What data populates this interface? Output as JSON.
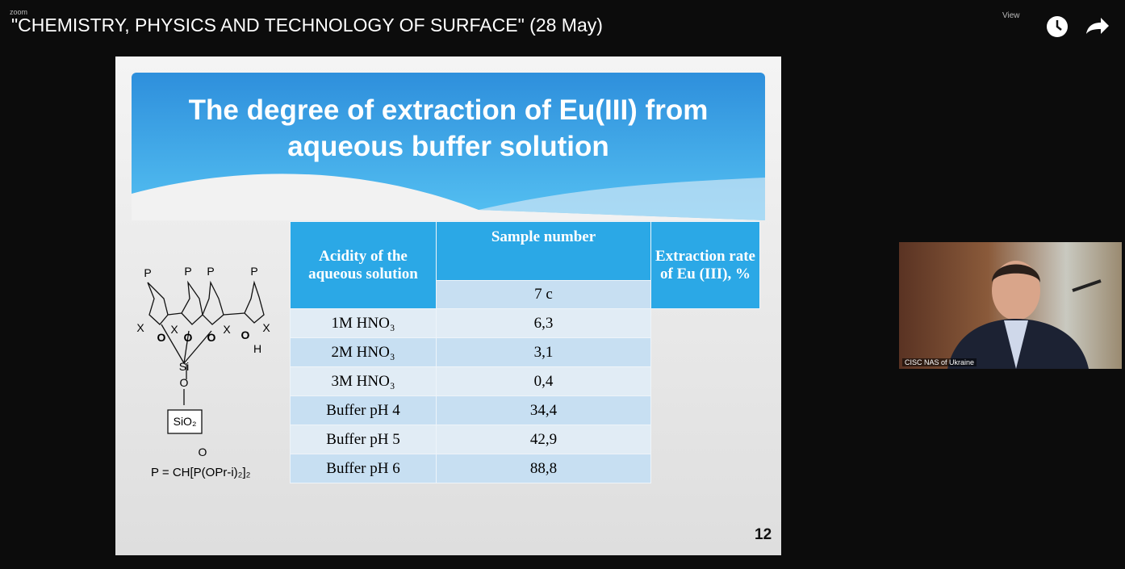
{
  "zoom_bar": {
    "app": "zoom",
    "view": "View"
  },
  "video_title": "\"CHEMISTRY, PHYSICS AND TECHNOLOGY OF SURFACE\" (28 May)",
  "slide": {
    "title": "The degree of extraction of Eu(III) from aqueous buffer solution",
    "table": {
      "header_acidity": "Acidity of the aqueous solution",
      "header_sample": "Sample number",
      "header_sample_id": "7 c",
      "header_rate": "Extraction rate of Eu (III), %",
      "rows": [
        [
          "1M HNO₃",
          "6,3"
        ],
        [
          "2M HNO₃",
          "3,1"
        ],
        [
          "3M HNO₃",
          "0,4"
        ],
        [
          "Buffer pH 4",
          "34,4"
        ],
        [
          "Buffer pH 5",
          "42,9"
        ],
        [
          "Buffer pH 6",
          "88,8"
        ]
      ]
    },
    "structure": {
      "atoms": [
        "P",
        "P",
        "P",
        "P",
        "X",
        "X",
        "X",
        "X",
        "O",
        "O",
        "O",
        "O",
        "H",
        "Si",
        "O",
        "SiO₂",
        "O"
      ],
      "formula": "P = CH[P(OPr-i)₂]₂"
    },
    "page_number": "12"
  },
  "participant": {
    "name": "CISC NAS of Ukraine"
  }
}
